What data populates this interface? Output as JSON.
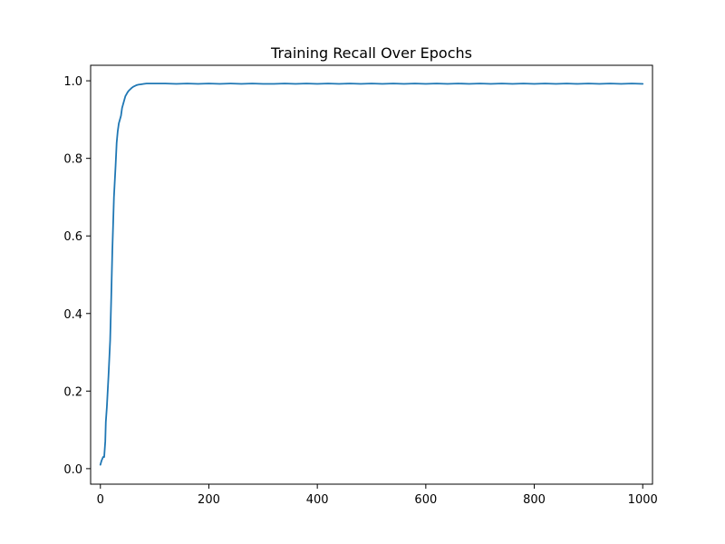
{
  "chart_data": {
    "type": "line",
    "title": "Training Recall Over Epochs",
    "xlabel": "",
    "ylabel": "",
    "xlim": [
      -18,
      1018
    ],
    "ylim": [
      -0.04,
      1.04
    ],
    "x_ticks": [
      0,
      200,
      400,
      600,
      800,
      1000
    ],
    "y_ticks": [
      0.0,
      0.2,
      0.4,
      0.6,
      0.8,
      1.0
    ],
    "x_tick_labels": [
      "0",
      "200",
      "400",
      "600",
      "800",
      "1000"
    ],
    "y_tick_labels": [
      "0.0",
      "0.2",
      "0.4",
      "0.6",
      "0.8",
      "1.0"
    ],
    "grid": false,
    "legend": "none",
    "series": [
      {
        "color": "#1f77b4",
        "x": [
          0,
          2,
          5,
          7,
          9,
          10,
          12,
          15,
          18,
          20,
          22,
          25,
          28,
          30,
          32,
          34,
          36,
          38,
          40,
          42,
          44,
          46,
          48,
          50,
          52,
          55,
          58,
          61,
          64,
          67,
          70,
          75,
          80,
          85,
          90,
          100,
          120,
          140,
          160,
          180,
          200,
          220,
          240,
          260,
          280,
          300,
          320,
          340,
          360,
          380,
          400,
          420,
          440,
          460,
          480,
          500,
          520,
          540,
          560,
          580,
          600,
          620,
          640,
          660,
          680,
          700,
          720,
          740,
          760,
          780,
          800,
          820,
          840,
          860,
          880,
          900,
          920,
          940,
          960,
          980,
          1000
        ],
        "values": [
          0.01,
          0.02,
          0.03,
          0.03,
          0.07,
          0.12,
          0.16,
          0.24,
          0.33,
          0.44,
          0.56,
          0.7,
          0.78,
          0.84,
          0.87,
          0.89,
          0.9,
          0.91,
          0.93,
          0.94,
          0.95,
          0.96,
          0.965,
          0.97,
          0.974,
          0.978,
          0.982,
          0.985,
          0.987,
          0.989,
          0.99,
          0.991,
          0.992,
          0.993,
          0.993,
          0.993,
          0.993,
          0.992,
          0.993,
          0.992,
          0.993,
          0.992,
          0.993,
          0.992,
          0.993,
          0.992,
          0.992,
          0.993,
          0.992,
          0.993,
          0.992,
          0.993,
          0.992,
          0.993,
          0.992,
          0.993,
          0.992,
          0.993,
          0.992,
          0.993,
          0.992,
          0.993,
          0.992,
          0.993,
          0.992,
          0.993,
          0.992,
          0.993,
          0.992,
          0.993,
          0.992,
          0.993,
          0.992,
          0.993,
          0.992,
          0.993,
          0.992,
          0.993,
          0.992,
          0.993,
          0.992
        ]
      }
    ]
  }
}
